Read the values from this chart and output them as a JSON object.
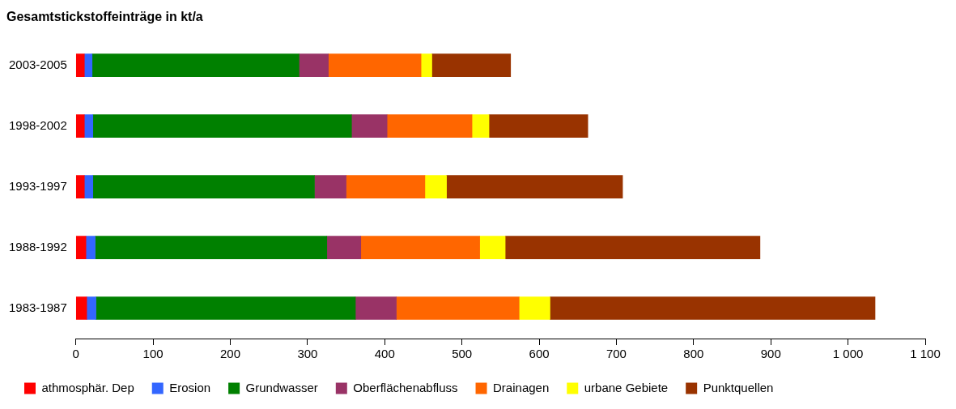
{
  "chart_data": {
    "type": "bar",
    "orientation": "horizontal",
    "stacked": true,
    "title": "Gesamtstickstoffeinträge in kt/a",
    "categories": [
      "2003-2005",
      "1998-2002",
      "1993-1997",
      "1988-1992",
      "1983-1987"
    ],
    "series": [
      {
        "name": "athmosphär. Dep",
        "color": "#ff0000",
        "values": [
          11,
          11,
          11,
          13,
          14
        ]
      },
      {
        "name": "Erosion",
        "color": "#3366ff",
        "values": [
          10,
          11,
          11,
          12,
          12
        ]
      },
      {
        "name": "Grundwasser",
        "color": "#008000",
        "values": [
          268,
          335,
          287,
          300,
          336
        ]
      },
      {
        "name": "Oberflächenabfluss",
        "color": "#993366",
        "values": [
          38,
          46,
          41,
          44,
          53
        ]
      },
      {
        "name": "Drainagen",
        "color": "#ff6600",
        "values": [
          120,
          110,
          102,
          154,
          159
        ]
      },
      {
        "name": "urbane Gebiete",
        "color": "#ffff00",
        "values": [
          14,
          22,
          28,
          33,
          40
        ]
      },
      {
        "name": "Punktquellen",
        "color": "#993300",
        "values": [
          102,
          128,
          228,
          330,
          421
        ]
      }
    ],
    "xlim": [
      0,
      1100
    ],
    "xticks": [
      0,
      100,
      200,
      300,
      400,
      500,
      600,
      700,
      800,
      900,
      {
        "value": 1000,
        "label": "1 000"
      },
      {
        "value": 1100,
        "label": "1 100"
      }
    ],
    "grid": false,
    "legend": "bottom"
  }
}
